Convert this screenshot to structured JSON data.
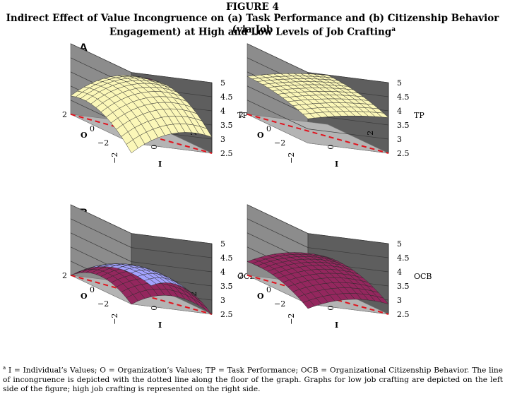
{
  "figure": {
    "label": "FIGURE 4",
    "title_line1": "Indirect Effect of Value Incongruence on (a) Task Performance and (b) Citizenship Behavior (via Job",
    "title_line2": "Engagement) at High and Low Levels of Job Crafting",
    "title_sup": "a"
  },
  "panels": {
    "a": "A",
    "b": "B"
  },
  "footnote": {
    "mark": "a",
    "text": " I = Individual’s Values; O = Organization’s Values; TP = Task Performance; OCB = Organizational Citizenship Behavior. The line of incongruence is depicted with the dotted line along the floor of the graph. Graphs for low job crafting are depicted on the left side of the figure; high job crafting is represented on the right side."
  },
  "colors": {
    "wall_left": "#8c8c8c",
    "wall_right": "#5e5e5e",
    "floor": "#b4b4b4",
    "surface_yellow": "#fbf7b8",
    "surface_maroon": "#94275e",
    "surface_blue": "#a3a3ff",
    "surface_cyan": "#bfeef2",
    "incongruence_line": "#e0141e"
  },
  "chart_data": [
    {
      "type": "surface3d",
      "panel": "A",
      "side": "left",
      "title": "",
      "xlabel": "I",
      "ylabel": "O",
      "zlabel": "TP",
      "xlim": [
        -2,
        2
      ],
      "ylim": [
        -2,
        2
      ],
      "zlim": [
        2.5,
        5
      ],
      "ticks_x": [
        "−2",
        "0",
        "2"
      ],
      "ticks_y": [
        "−2",
        "0",
        "2"
      ],
      "ticks_z": [
        "2.5",
        "3",
        "3.5",
        "4",
        "4.5",
        "5"
      ],
      "top_face": "yellow",
      "bottom_face": "maroon",
      "surface": {
        "c": 3.95,
        "a": 0.23,
        "b": 0.25,
        "d": -0.1,
        "e": -0.11,
        "f": 0.0
      }
    },
    {
      "type": "surface3d",
      "panel": "A",
      "side": "right",
      "title": "",
      "xlabel": "I",
      "ylabel": "O",
      "zlabel": "TP",
      "xlim": [
        -2,
        2
      ],
      "ylim": [
        -2,
        2
      ],
      "zlim": [
        2.5,
        5
      ],
      "ticks_x": [
        "−2",
        "0",
        "2"
      ],
      "ticks_y": [
        "−2",
        "0",
        "2"
      ],
      "ticks_z": [
        "2.5",
        "3",
        "3.5",
        "4",
        "4.5",
        "5"
      ],
      "top_face": "yellow",
      "bottom_face": "cyan",
      "surface": {
        "c": 4.0,
        "a": 0.1,
        "b": 0.12,
        "d": -0.02,
        "e": -0.03,
        "f": 0.0
      }
    },
    {
      "type": "surface3d",
      "panel": "B",
      "side": "left",
      "title": "",
      "xlabel": "I",
      "ylabel": "O",
      "zlabel": "OCB",
      "xlim": [
        -2,
        2
      ],
      "ylim": [
        -2,
        2
      ],
      "zlim": [
        2.5,
        5
      ],
      "ticks_x": [
        "−2",
        "0",
        "2"
      ],
      "ticks_y": [
        "−2",
        "0",
        "2"
      ],
      "ticks_z": [
        "2.5",
        "3",
        "3.5",
        "4",
        "4.5",
        "5"
      ],
      "top_face": "maroon",
      "bottom_face": "blue",
      "surface": {
        "c": 3.45,
        "a": 0.0,
        "b": 0.0,
        "d": -0.12,
        "e": -0.12,
        "f": 0.0
      }
    },
    {
      "type": "surface3d",
      "panel": "B",
      "side": "right",
      "title": "",
      "xlabel": "I",
      "ylabel": "O",
      "zlabel": "OCB",
      "xlim": [
        -2,
        2
      ],
      "ylim": [
        -2,
        2
      ],
      "zlim": [
        2.5,
        5
      ],
      "ticks_x": [
        "−2",
        "0",
        "2"
      ],
      "ticks_y": [
        "−2",
        "0",
        "2"
      ],
      "ticks_z": [
        "2.5",
        "3",
        "3.5",
        "4",
        "4.5",
        "5"
      ],
      "top_face": "maroon",
      "bottom_face": "blue",
      "surface": {
        "c": 3.4,
        "a": 0.13,
        "b": 0.16,
        "d": -0.06,
        "e": -0.06,
        "f": 0.0
      }
    }
  ]
}
